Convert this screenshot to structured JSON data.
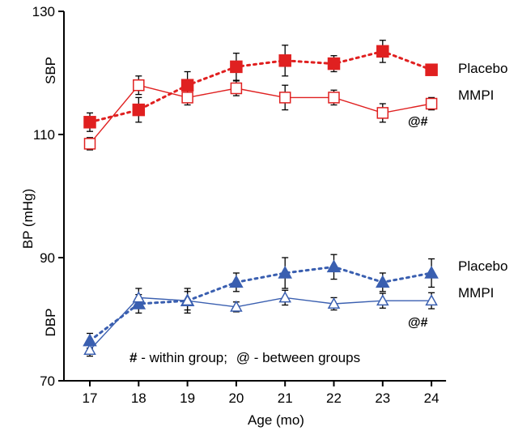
{
  "chart_data": {
    "type": "line",
    "x": [
      17,
      18,
      19,
      20,
      21,
      22,
      23,
      24
    ],
    "xlabel": "Age (mo)",
    "ylabel": "BP (mHg)",
    "ylim": [
      70,
      130
    ],
    "y_ticks": [
      70,
      90,
      110,
      130
    ],
    "panel_labels": {
      "upper": "SBP",
      "lower": "DBP"
    },
    "series": [
      {
        "name": "Placebo",
        "group": "SBP",
        "marker": "filled-square",
        "line": "dotted",
        "color": "#e02020",
        "values": [
          112,
          114,
          118,
          121,
          122,
          121.5,
          123.5,
          120.5
        ],
        "errors": [
          1.5,
          2,
          2.2,
          2.2,
          2.5,
          1.3,
          1.8,
          0.8
        ]
      },
      {
        "name": "MMPI",
        "group": "SBP",
        "marker": "open-square",
        "line": "solid",
        "color": "#e02020",
        "values": [
          108.5,
          118,
          116,
          117.5,
          116,
          116,
          113.5,
          115
        ],
        "errors": [
          1,
          1.5,
          1.2,
          1.2,
          2,
          1.2,
          1.5,
          1
        ]
      },
      {
        "name": "Placebo",
        "group": "DBP",
        "marker": "filled-triangle",
        "line": "dotted",
        "color": "#3a5fb0",
        "values": [
          76.5,
          82.5,
          83,
          86,
          87.5,
          88.5,
          86,
          87.5
        ],
        "errors": [
          1.2,
          1.5,
          2,
          1.5,
          2.5,
          2,
          1.5,
          2.3
        ]
      },
      {
        "name": "MMPI",
        "group": "DBP",
        "marker": "open-triangle",
        "line": "solid",
        "color": "#3a5fb0",
        "values": [
          75,
          83.5,
          83,
          82,
          83.5,
          82.5,
          83,
          83
        ],
        "errors": [
          1,
          1.5,
          1.5,
          0.8,
          1.2,
          1,
          1.2,
          1.3
        ]
      }
    ],
    "annotations": {
      "sbp_sig": "@#",
      "dbp_sig": "@#",
      "note_hash": "#",
      "note_hash_text": "- within group;",
      "note_at": "@",
      "note_at_text": "- between groups"
    }
  }
}
